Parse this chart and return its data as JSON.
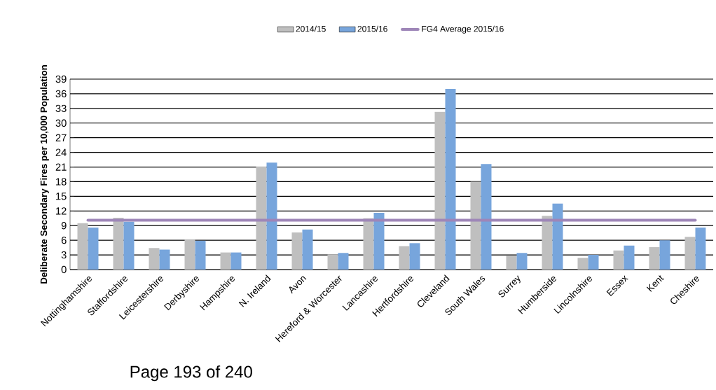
{
  "chart_data": {
    "type": "bar",
    "ylabel": "Deliberate Secondary Fires per 10,000 Population",
    "categories": [
      "Nottinghamshire",
      "Staffordshire",
      "Leicestershire",
      "Derbyshire",
      "Hampshire",
      "N. Ireland",
      "Avon",
      "Hereford & Worcester",
      "Lancashire",
      "Hertfordshire",
      "Cleveland",
      "South Wales",
      "Surrey",
      "Humberside",
      "Lincolnshire",
      "Essex",
      "Kent",
      "Cheshire"
    ],
    "series": [
      {
        "name": "2014/15",
        "color": "#bfbfbf",
        "values": [
          9.5,
          10.6,
          4.4,
          6.2,
          3.5,
          21.1,
          7.6,
          3.1,
          10.5,
          4.8,
          32.3,
          18.0,
          2.8,
          11.0,
          2.4,
          3.9,
          4.6,
          6.7
        ]
      },
      {
        "name": "2015/16",
        "color": "#77a5dc",
        "values": [
          8.6,
          9.8,
          4.1,
          5.9,
          3.5,
          21.9,
          8.2,
          3.4,
          11.6,
          5.4,
          37.0,
          21.6,
          3.4,
          13.5,
          3.0,
          4.9,
          6.0,
          8.6
        ]
      }
    ],
    "ref_lines": [
      {
        "axis": "y",
        "value": 10.1,
        "label": "FG4 Average 2015/16",
        "color": "#9e86b8"
      }
    ],
    "ylim": [
      0,
      39
    ],
    "yticks": [
      0,
      3,
      6,
      9,
      12,
      15,
      18,
      21,
      24,
      27,
      30,
      33,
      36,
      39
    ],
    "grid": "y",
    "legend": "top",
    "annotations": [
      "Page 193 of 240"
    ]
  }
}
